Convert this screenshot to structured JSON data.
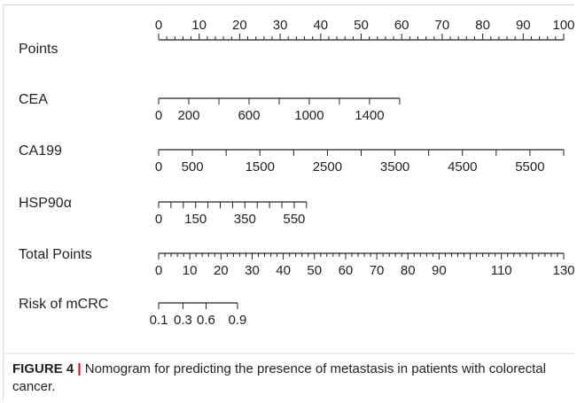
{
  "chart_data": {
    "type": "nomogram",
    "title": "",
    "grid": false,
    "axes": [
      {
        "name": "Points",
        "range": [
          0,
          100
        ],
        "tick_labels_position": "above",
        "labels": [
          {
            "value": 0,
            "text": "0"
          },
          {
            "value": 10,
            "text": "10"
          },
          {
            "value": 20,
            "text": "20"
          },
          {
            "value": 30,
            "text": "30"
          },
          {
            "value": 40,
            "text": "40"
          },
          {
            "value": 50,
            "text": "50"
          },
          {
            "value": 60,
            "text": "60"
          },
          {
            "value": 70,
            "text": "70"
          },
          {
            "value": 80,
            "text": "80"
          },
          {
            "value": 90,
            "text": "90"
          },
          {
            "value": 100,
            "text": "100"
          }
        ],
        "minor_step": 2,
        "major_step": 10
      },
      {
        "name": "CEA",
        "range": [
          0,
          1600
        ],
        "points_range": [
          0,
          59.5
        ],
        "tick_labels_position": "below",
        "labels": [
          {
            "value": 0,
            "text": "0"
          },
          {
            "value": 200,
            "text": "200"
          },
          {
            "value": 600,
            "text": "600"
          },
          {
            "value": 1000,
            "text": "1000"
          },
          {
            "value": 1400,
            "text": "1400"
          }
        ],
        "ticks": [
          0,
          200,
          400,
          600,
          800,
          1000,
          1200,
          1400,
          1600
        ]
      },
      {
        "name": "CA199",
        "range": [
          0,
          6000
        ],
        "points_range": [
          0,
          100
        ],
        "tick_labels_position": "below",
        "labels": [
          {
            "value": 0,
            "text": "0"
          },
          {
            "value": 500,
            "text": "500"
          },
          {
            "value": 1500,
            "text": "1500"
          },
          {
            "value": 2500,
            "text": "2500"
          },
          {
            "value": 3500,
            "text": "3500"
          },
          {
            "value": 4500,
            "text": "4500"
          },
          {
            "value": 5500,
            "text": "5500"
          }
        ],
        "ticks": [
          0,
          500,
          1000,
          1500,
          2000,
          2500,
          3000,
          3500,
          4000,
          4500,
          5000,
          5500,
          6000
        ]
      },
      {
        "name": "HSP90α",
        "range": [
          0,
          600
        ],
        "points_range": [
          0,
          36.5
        ],
        "tick_labels_position": "below",
        "labels": [
          {
            "value": 0,
            "text": "0"
          },
          {
            "value": 150,
            "text": "150"
          },
          {
            "value": 350,
            "text": "350"
          },
          {
            "value": 550,
            "text": "550"
          }
        ],
        "ticks": [
          0,
          50,
          100,
          150,
          200,
          250,
          300,
          350,
          400,
          450,
          500,
          550,
          600
        ]
      },
      {
        "name": "Total Points",
        "range": [
          0,
          130
        ],
        "tick_labels_position": "below",
        "labels": [
          {
            "value": 0,
            "text": "0"
          },
          {
            "value": 10,
            "text": "10"
          },
          {
            "value": 20,
            "text": "20"
          },
          {
            "value": 30,
            "text": "30"
          },
          {
            "value": 40,
            "text": "40"
          },
          {
            "value": 50,
            "text": "50"
          },
          {
            "value": 60,
            "text": "60"
          },
          {
            "value": 70,
            "text": "70"
          },
          {
            "value": 80,
            "text": "80"
          },
          {
            "value": 90,
            "text": "90"
          },
          {
            "value": 110,
            "text": "110"
          },
          {
            "value": 130,
            "text": "130"
          }
        ],
        "minor_step": 2,
        "major_step": 10
      },
      {
        "name": "Risk of mCRC",
        "range": [
          0.1,
          0.9
        ],
        "tick_labels_position": "below",
        "labels": [
          {
            "value": 0.1,
            "text": "0.1"
          },
          {
            "value": 0.3,
            "text": "0.3"
          },
          {
            "value": 0.6,
            "text": "0.6"
          },
          {
            "value": 0.9,
            "text": "0.9"
          }
        ],
        "ticks": [
          0.1,
          0.3,
          0.6,
          0.9
        ],
        "total_points_at_ticks": [
          0,
          7.8,
          15.2,
          25.3
        ]
      }
    ]
  },
  "caption": {
    "label": "FIGURE 4",
    "separator": "|",
    "text": "Nomogram for predicting the presence of metastasis in patients with colorectal cancer."
  },
  "colors": {
    "axis": "#222222",
    "text": "#222222",
    "caption_separator": "#d0021b"
  }
}
